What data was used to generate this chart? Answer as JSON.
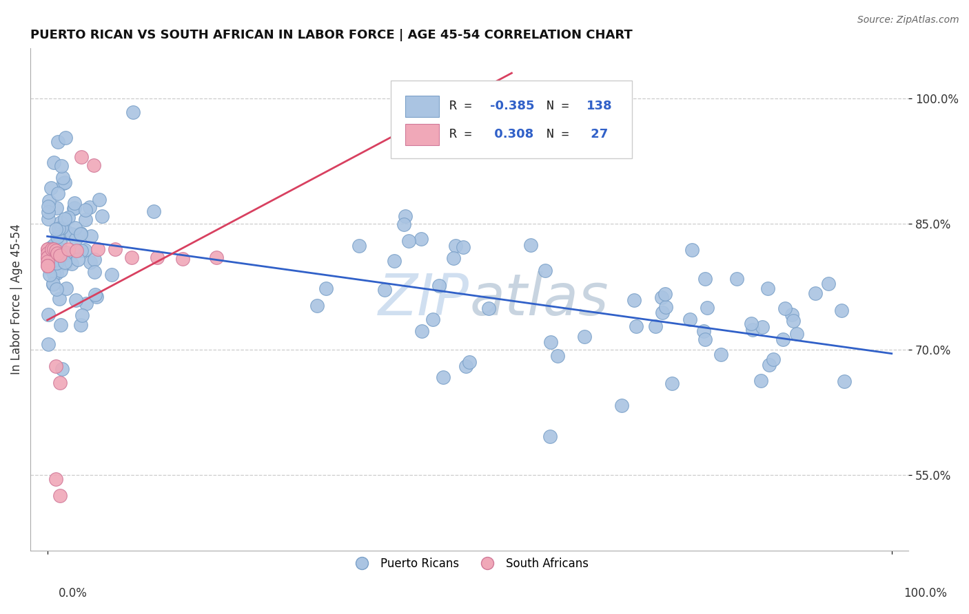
{
  "title": "PUERTO RICAN VS SOUTH AFRICAN IN LABOR FORCE | AGE 45-54 CORRELATION CHART",
  "source": "Source: ZipAtlas.com",
  "ylabel": "In Labor Force | Age 45-54",
  "legend_label1": "Puerto Ricans",
  "legend_label2": "South Africans",
  "r1": "-0.385",
  "n1": "138",
  "r2": "0.308",
  "n2": "27",
  "blue_color": "#aac4e2",
  "pink_color": "#f0a8b8",
  "blue_edge_color": "#7aa0c8",
  "pink_edge_color": "#d07898",
  "blue_line_color": "#3060c8",
  "pink_line_color": "#d84060",
  "watermark_color": "#d0dff0",
  "y_ticks": [
    0.55,
    0.7,
    0.85,
    1.0
  ],
  "y_tick_labels": [
    "55.0%",
    "70.0%",
    "85.0%",
    "100.0%"
  ],
  "xlim": [
    -0.02,
    1.02
  ],
  "ylim": [
    0.46,
    1.06
  ],
  "blue_trend_x0": 0.0,
  "blue_trend_y0": 0.835,
  "blue_trend_x1": 1.0,
  "blue_trend_y1": 0.695,
  "pink_trend_x0": 0.0,
  "pink_trend_y0": 0.735,
  "pink_trend_x1": 0.55,
  "pink_trend_y1": 1.03
}
